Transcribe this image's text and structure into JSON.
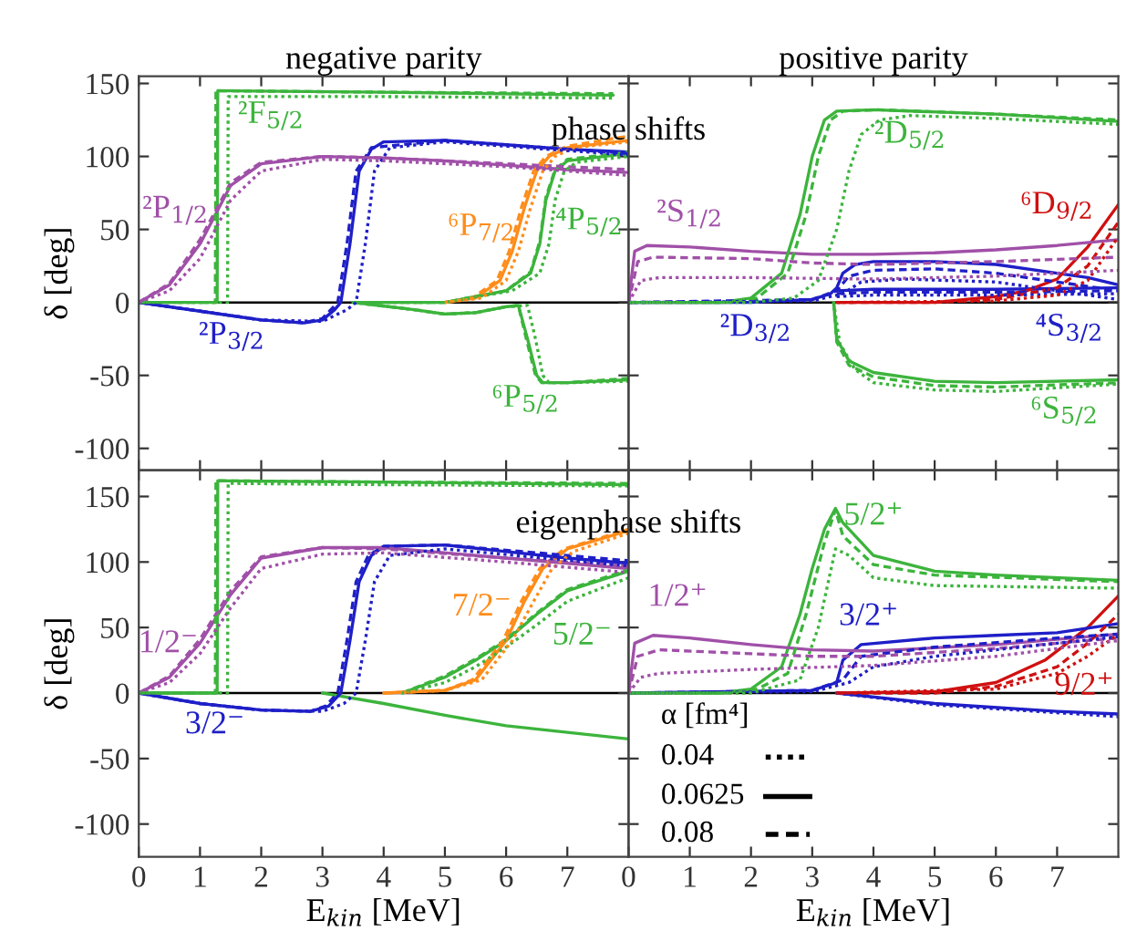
{
  "chart_data": [
    {
      "type": "line",
      "title": "negative parity",
      "subtitle": "phase shifts",
      "ylabel": "δ [deg]",
      "xlim": [
        0,
        8
      ],
      "ylim": [
        -115,
        155
      ],
      "xticks": [
        0,
        1,
        2,
        3,
        4,
        5,
        6,
        7
      ],
      "yticks": [
        -100,
        -50,
        0,
        50,
        100,
        150
      ],
      "tick_labels": "y",
      "ref_lines": [
        {
          "axis": "y",
          "value": 0,
          "color": "#000000"
        }
      ],
      "series": [
        {
          "name": "²P$_{1/2}$",
          "color": "#a050a8",
          "line_style": "solid",
          "x": [
            0,
            0.5,
            1,
            1.5,
            2,
            3,
            4,
            5,
            6,
            7,
            8
          ],
          "values": [
            0,
            12,
            40,
            80,
            95,
            100,
            99,
            97,
            94,
            91,
            89
          ]
        },
        {
          "color": "#a050a8",
          "line_style": "dashed",
          "x": [
            0,
            0.5,
            1,
            1.5,
            2,
            3,
            4,
            6,
            8
          ],
          "values": [
            0,
            13,
            43,
            82,
            96,
            100,
            99,
            95,
            91
          ]
        },
        {
          "color": "#a050a8",
          "line_style": "dotted",
          "x": [
            0,
            0.5,
            1,
            1.5,
            2,
            3,
            4,
            6,
            8
          ],
          "values": [
            0,
            8,
            30,
            70,
            90,
            98,
            97,
            93,
            87
          ]
        },
        {
          "name": "²F$_{5/2}$",
          "color": "#3cb43c",
          "line_style": "solid",
          "x": [
            0,
            1.28,
            1.29,
            4,
            7.75
          ],
          "values": [
            0,
            0,
            145,
            144,
            142
          ]
        },
        {
          "color": "#3cb43c",
          "line_style": "dashed",
          "x": [
            0,
            1.25,
            1.26,
            4,
            7.75
          ],
          "values": [
            0,
            0,
            145,
            144,
            143
          ]
        },
        {
          "color": "#3cb43c",
          "line_style": "dotted",
          "x": [
            0,
            1.45,
            1.46,
            4,
            7.75
          ],
          "values": [
            0,
            0,
            141,
            141,
            140
          ]
        },
        {
          "name": "²P$_{3/2}$",
          "color": "#1f1fc8",
          "line_style": "solid",
          "x": [
            0,
            1,
            2,
            2.7,
            3,
            3.2,
            3.3,
            3.45,
            3.6,
            3.8,
            4,
            5,
            6,
            7,
            8
          ],
          "values": [
            0,
            -6,
            -12,
            -14,
            -12,
            -5,
            0,
            40,
            90,
            105,
            110,
            111,
            108,
            105,
            103
          ]
        },
        {
          "color": "#1f1fc8",
          "line_style": "dashed",
          "x": [
            0,
            1,
            2,
            2.7,
            3,
            3.25,
            3.4,
            3.55,
            3.8,
            5,
            8
          ],
          "values": [
            0,
            -6,
            -12,
            -14,
            -11,
            0,
            40,
            90,
            106,
            111,
            102
          ]
        },
        {
          "color": "#1f1fc8",
          "line_style": "dotted",
          "x": [
            0,
            1,
            2,
            3,
            3.4,
            3.55,
            3.7,
            3.85,
            4.1,
            5,
            8
          ],
          "values": [
            0,
            -6,
            -12,
            -13,
            -5,
            0,
            40,
            90,
            106,
            110,
            101
          ]
        },
        {
          "name": "⁶P$_{7/2}$",
          "color": "#ff8c1a",
          "line_style": "solid",
          "x": [
            5,
            5.5,
            5.9,
            6.1,
            6.3,
            6.5,
            6.7,
            7,
            8
          ],
          "values": [
            0,
            3,
            15,
            35,
            65,
            90,
            100,
            106,
            111
          ]
        },
        {
          "color": "#ff8c1a",
          "line_style": "dashed",
          "x": [
            5,
            5.45,
            5.85,
            6.05,
            6.25,
            6.45,
            6.65,
            7,
            8
          ],
          "values": [
            0,
            3,
            15,
            35,
            65,
            90,
            100,
            107,
            114
          ]
        },
        {
          "color": "#ff8c1a",
          "line_style": "dotted",
          "x": [
            5,
            5.6,
            6,
            6.2,
            6.4,
            6.6,
            6.8,
            7.1,
            8
          ],
          "values": [
            0,
            3,
            15,
            35,
            65,
            90,
            100,
            106,
            110
          ]
        },
        {
          "name": "⁴P$_{5/2}$",
          "color": "#3cb43c",
          "line_style": "solid",
          "x": [
            3.5,
            5,
            6,
            6.4,
            6.55,
            6.65,
            6.8,
            7,
            8
          ],
          "values": [
            0,
            0,
            8,
            20,
            40,
            70,
            90,
            97,
            102
          ]
        },
        {
          "color": "#3cb43c",
          "line_style": "dashed",
          "x": [
            3.5,
            5,
            6,
            6.4,
            6.55,
            6.65,
            6.8,
            7,
            8
          ],
          "values": [
            0,
            0,
            8,
            21,
            42,
            72,
            91,
            98,
            103
          ]
        },
        {
          "color": "#3cb43c",
          "line_style": "dotted",
          "x": [
            3.5,
            5,
            6.1,
            6.55,
            6.7,
            6.8,
            6.95,
            7.15,
            8
          ],
          "values": [
            0,
            0,
            8,
            20,
            40,
            70,
            90,
            96,
            100
          ]
        },
        {
          "name": "⁶P$_{5/2}$",
          "color": "#3cb43c",
          "line_style": "solid",
          "x": [
            3.5,
            4.5,
            5,
            5.5,
            6,
            6.2,
            6.35,
            6.5,
            6.6,
            7,
            8
          ],
          "values": [
            0,
            -5,
            -8,
            -7,
            -3,
            -2,
            -25,
            -50,
            -55,
            -55,
            -53
          ]
        },
        {
          "color": "#3cb43c",
          "line_style": "dashed",
          "x": [
            3.5,
            4.5,
            5,
            5.5,
            6,
            6.2,
            6.33,
            6.48,
            6.58,
            7,
            8
          ],
          "values": [
            0,
            -5,
            -8,
            -7,
            -3,
            -2,
            -25,
            -50,
            -55,
            -55,
            -52
          ]
        },
        {
          "color": "#3cb43c",
          "line_style": "dotted",
          "x": [
            3.5,
            4.5,
            5,
            5.5,
            6,
            6.35,
            6.48,
            6.6,
            6.7,
            7,
            8
          ],
          "values": [
            0,
            -5,
            -8,
            -7,
            -3,
            -2,
            -25,
            -50,
            -55,
            -55,
            -54
          ]
        }
      ]
    },
    {
      "type": "line",
      "title": "positive parity",
      "xlim": [
        0,
        8
      ],
      "ylim": [
        -115,
        155
      ],
      "xticks": [
        0,
        1,
        2,
        3,
        4,
        5,
        6,
        7
      ],
      "yticks": [
        -100,
        -50,
        0,
        50,
        100,
        150
      ],
      "tick_labels": false,
      "ref_lines": [
        {
          "axis": "y",
          "value": 0,
          "color": "#000000"
        }
      ],
      "series": [
        {
          "name": "²D$_{5/2}$",
          "color": "#3cb43c",
          "line_style": "solid",
          "x": [
            0,
            1.5,
            2,
            2.5,
            2.8,
            3,
            3.2,
            3.4,
            4,
            6,
            8
          ],
          "values": [
            0,
            0,
            3,
            20,
            60,
            100,
            125,
            131,
            132,
            129,
            124
          ]
        },
        {
          "color": "#3cb43c",
          "line_style": "dashed",
          "x": [
            0,
            1.6,
            2.1,
            2.6,
            2.9,
            3.1,
            3.3,
            3.5,
            4.1,
            6,
            8
          ],
          "values": [
            0,
            0,
            3,
            20,
            60,
            100,
            125,
            131,
            132,
            129,
            125
          ]
        },
        {
          "color": "#3cb43c",
          "line_style": "dotted",
          "x": [
            0,
            2,
            2.7,
            3.1,
            3.4,
            3.6,
            3.8,
            4.1,
            4.6,
            6,
            8
          ],
          "values": [
            0,
            0,
            3,
            15,
            50,
            90,
            115,
            125,
            128,
            126,
            122
          ]
        },
        {
          "name": "²S$_{1/2}$",
          "color": "#a050a8",
          "line_style": "solid",
          "x": [
            0,
            0.1,
            0.3,
            1,
            2,
            3,
            4,
            5,
            6,
            7,
            8
          ],
          "values": [
            0,
            35,
            39,
            38,
            35,
            33,
            33,
            34,
            36,
            39,
            43
          ]
        },
        {
          "color": "#a050a8",
          "line_style": "dashed",
          "x": [
            0,
            0.15,
            0.4,
            2,
            3,
            4,
            6,
            8
          ],
          "values": [
            0,
            28,
            31,
            30,
            27,
            26,
            28,
            31
          ]
        },
        {
          "color": "#a050a8",
          "line_style": "dotted",
          "x": [
            0,
            0.2,
            0.5,
            2,
            4,
            6,
            8
          ],
          "values": [
            0,
            15,
            17,
            17,
            16,
            18,
            22
          ]
        },
        {
          "name": "⁶D$_{9/2}$",
          "color": "#d01010",
          "line_style": "solid",
          "x": [
            3.4,
            5,
            6,
            6.5,
            7,
            7.5,
            8
          ],
          "values": [
            0,
            0,
            4,
            8,
            16,
            38,
            67
          ]
        },
        {
          "color": "#d01010",
          "line_style": "dashed",
          "x": [
            3.4,
            5,
            6,
            7,
            7.5,
            8
          ],
          "values": [
            0,
            0,
            2,
            10,
            25,
            55
          ]
        },
        {
          "color": "#d01010",
          "line_style": "dotted",
          "x": [
            3.4,
            6,
            7,
            7.5,
            8
          ],
          "values": [
            0,
            1,
            5,
            15,
            45
          ]
        },
        {
          "name": "²D$_{3/2}$",
          "color": "#1f1fc8",
          "line_style": "solid",
          "x": [
            0,
            2,
            3,
            3.3,
            3.4,
            3.5,
            3.7,
            4,
            5,
            6,
            7,
            7.5,
            8
          ],
          "values": [
            0,
            0,
            2,
            6,
            10,
            20,
            26,
            28,
            28,
            26,
            20,
            17,
            12
          ]
        },
        {
          "color": "#1f1fc8",
          "line_style": "dashed",
          "x": [
            0,
            3,
            3.4,
            3.6,
            4,
            5,
            6,
            7,
            8
          ],
          "values": [
            0,
            2,
            8,
            18,
            22,
            23,
            20,
            14,
            8
          ]
        },
        {
          "color": "#1f1fc8",
          "line_style": "dotted",
          "x": [
            0,
            3,
            3.5,
            3.8,
            4.5,
            6,
            7,
            8
          ],
          "values": [
            0,
            1,
            6,
            14,
            16,
            14,
            8,
            2
          ]
        },
        {
          "name": "⁴S$_{3/2}$",
          "color": "#1f1fc8",
          "line_style": "solid",
          "x": [
            3.4,
            4,
            6,
            8
          ],
          "values": [
            8,
            9,
            9,
            10
          ]
        },
        {
          "color": "#1f1fc8",
          "line_style": "dashed",
          "x": [
            3.4,
            4,
            6,
            8
          ],
          "values": [
            6,
            7,
            7,
            8
          ]
        },
        {
          "color": "#1f1fc8",
          "line_style": "dotted",
          "x": [
            3.4,
            4,
            6,
            8
          ],
          "values": [
            4,
            5,
            5,
            6
          ]
        },
        {
          "name": "⁶S$_{5/2}$",
          "color": "#3cb43c",
          "line_style": "solid",
          "x": [
            3.35,
            3.4,
            3.6,
            4,
            5,
            6,
            8
          ],
          "values": [
            0,
            -25,
            -40,
            -48,
            -54,
            -55,
            -53
          ]
        },
        {
          "color": "#3cb43c",
          "line_style": "dashed",
          "x": [
            3.35,
            3.4,
            3.6,
            4,
            5,
            6,
            8
          ],
          "values": [
            0,
            -27,
            -43,
            -51,
            -57,
            -58,
            -55
          ]
        },
        {
          "color": "#3cb43c",
          "line_style": "dotted",
          "x": [
            3.35,
            3.45,
            3.7,
            4,
            5,
            6,
            8
          ],
          "values": [
            0,
            -28,
            -46,
            -55,
            -60,
            -61,
            -56
          ]
        }
      ]
    },
    {
      "type": "line",
      "subtitle": "eigenphase shifts",
      "xlabel": "E$_{kin}$ [MeV]",
      "ylabel": "δ [deg]",
      "xlim": [
        0,
        8
      ],
      "ylim": [
        -125,
        170
      ],
      "xticks": [
        0,
        1,
        2,
        3,
        4,
        5,
        6,
        7
      ],
      "yticks": [
        -100,
        -50,
        0,
        50,
        100,
        150
      ],
      "ref_lines": [
        {
          "axis": "y",
          "value": 0,
          "color": "#000000"
        }
      ],
      "series": [
        {
          "color": "#3cb43c",
          "line_style": "solid",
          "x": [
            0,
            1.28,
            1.29,
            4,
            8
          ],
          "values": [
            0,
            0,
            162,
            161,
            159
          ]
        },
        {
          "color": "#3cb43c",
          "line_style": "dashed",
          "x": [
            0,
            1.25,
            1.26,
            4,
            8
          ],
          "values": [
            0,
            0,
            162,
            161,
            160
          ]
        },
        {
          "color": "#3cb43c",
          "line_style": "dotted",
          "x": [
            0,
            1.45,
            1.46,
            4,
            8
          ],
          "values": [
            0,
            0,
            160,
            159,
            158
          ]
        },
        {
          "name": "1/2⁻",
          "color": "#a050a8",
          "line_style": "solid",
          "x": [
            0,
            0.5,
            1,
            1.5,
            2,
            3,
            4,
            6,
            8
          ],
          "values": [
            0,
            12,
            38,
            75,
            103,
            111,
            111,
            103,
            95
          ]
        },
        {
          "color": "#a050a8",
          "line_style": "dashed",
          "x": [
            0,
            0.5,
            1,
            1.5,
            2,
            3,
            4,
            6,
            8
          ],
          "values": [
            0,
            13,
            41,
            78,
            104,
            111,
            110,
            103,
            97
          ]
        },
        {
          "color": "#a050a8",
          "line_style": "dotted",
          "x": [
            0,
            0.5,
            1,
            1.5,
            2,
            3,
            4,
            6,
            8
          ],
          "values": [
            0,
            8,
            30,
            65,
            95,
            106,
            107,
            100,
            92
          ]
        },
        {
          "name": "3/2⁻",
          "color": "#1f1fc8",
          "line_style": "solid",
          "x": [
            0,
            1,
            2,
            2.8,
            3.1,
            3.3,
            3.45,
            3.6,
            3.8,
            4,
            5,
            6,
            7,
            8
          ],
          "values": [
            0,
            -8,
            -13,
            -14,
            -10,
            0,
            40,
            85,
            105,
            112,
            113,
            108,
            103,
            99
          ]
        },
        {
          "color": "#1f1fc8",
          "line_style": "dashed",
          "x": [
            0,
            1,
            2,
            2.8,
            3.05,
            3.25,
            3.4,
            3.55,
            3.75,
            4,
            5,
            8
          ],
          "values": [
            0,
            -8,
            -13,
            -14,
            -10,
            0,
            40,
            85,
            105,
            112,
            113,
            101
          ]
        },
        {
          "color": "#1f1fc8",
          "line_style": "dotted",
          "x": [
            0,
            1,
            2,
            3,
            3.35,
            3.55,
            3.7,
            3.85,
            4.1,
            5,
            8
          ],
          "values": [
            0,
            -8,
            -13,
            -14,
            -8,
            0,
            40,
            85,
            105,
            110,
            97
          ]
        },
        {
          "color": "#3cb43c",
          "line_style": "solid",
          "x": [
            3,
            4,
            5,
            6,
            7,
            8
          ],
          "values": [
            0,
            -8,
            -17,
            -25,
            -30,
            -35
          ]
        },
        {
          "name": "7/2⁻",
          "color": "#ff8c1a",
          "line_style": "solid",
          "x": [
            4,
            5,
            5.5,
            6,
            6.3,
            6.6,
            7,
            8
          ],
          "values": [
            0,
            2,
            10,
            40,
            70,
            95,
            110,
            124
          ]
        },
        {
          "color": "#ff8c1a",
          "line_style": "dashed",
          "x": [
            4,
            5,
            5.45,
            5.95,
            6.25,
            6.55,
            6.95,
            8
          ],
          "values": [
            0,
            2,
            10,
            40,
            70,
            95,
            110,
            125
          ]
        },
        {
          "color": "#ff8c1a",
          "line_style": "dotted",
          "x": [
            4,
            5,
            5.6,
            6.1,
            6.45,
            6.75,
            7.1,
            8
          ],
          "values": [
            0,
            2,
            10,
            40,
            70,
            95,
            108,
            122
          ]
        },
        {
          "name": "5/2⁻",
          "color": "#3cb43c",
          "line_style": "solid",
          "x": [
            4.3,
            5,
            5.5,
            6,
            6.5,
            7,
            8
          ],
          "values": [
            0,
            12,
            25,
            40,
            60,
            78,
            93
          ]
        },
        {
          "color": "#3cb43c",
          "line_style": "dashed",
          "x": [
            4.3,
            5,
            5.5,
            6,
            6.5,
            7,
            8
          ],
          "values": [
            0,
            13,
            26,
            41,
            61,
            79,
            94
          ]
        },
        {
          "color": "#3cb43c",
          "line_style": "dotted",
          "x": [
            4.3,
            5,
            5.5,
            6,
            6.5,
            7,
            8
          ],
          "values": [
            0,
            8,
            20,
            35,
            52,
            70,
            88
          ]
        }
      ]
    },
    {
      "type": "line",
      "xlabel": "E$_{kin}$ [MeV]",
      "xlim": [
        0,
        8
      ],
      "ylim": [
        -125,
        170
      ],
      "xticks": [
        0,
        1,
        2,
        3,
        4,
        5,
        6,
        7
      ],
      "yticks": [
        -100,
        -50,
        0,
        50,
        100,
        150
      ],
      "tick_labels": "x",
      "ref_lines": [
        {
          "axis": "y",
          "value": 0,
          "color": "#000000"
        }
      ],
      "annotations": [
        "α [fm⁴]",
        "0.04",
        "0.0625",
        "0.08"
      ],
      "series": [
        {
          "color": "#a050a8",
          "line_style": "dotted",
          "x": [
            0,
            0.2,
            0.5,
            2,
            4,
            6,
            8
          ],
          "values": [
            0,
            12,
            15,
            18,
            21,
            28,
            40
          ]
        },
        {
          "name": "1/2⁺",
          "color": "#a050a8",
          "line_style": "solid",
          "x": [
            0,
            0.1,
            0.4,
            1,
            2,
            3,
            4,
            6,
            8
          ],
          "values": [
            0,
            38,
            44,
            42,
            37,
            33,
            32,
            37,
            45
          ]
        },
        {
          "color": "#a050a8",
          "line_style": "dashed",
          "x": [
            0,
            0.15,
            0.5,
            2,
            3,
            4,
            6,
            8
          ],
          "values": [
            0,
            28,
            33,
            30,
            28,
            28,
            34,
            42
          ]
        },
        {
          "name": "5/2⁺",
          "color": "#3cb43c",
          "line_style": "solid",
          "x": [
            0,
            1.5,
            2,
            2.5,
            2.8,
            3,
            3.2,
            3.38,
            3.5,
            4,
            5,
            6,
            8
          ],
          "values": [
            0,
            0,
            3,
            20,
            60,
            95,
            125,
            141,
            130,
            105,
            93,
            90,
            86
          ]
        },
        {
          "color": "#3cb43c",
          "line_style": "dashed",
          "x": [
            0,
            1.6,
            2.1,
            2.6,
            2.9,
            3.2,
            3.38,
            3.5,
            4,
            5,
            8
          ],
          "values": [
            0,
            0,
            3,
            15,
            60,
            115,
            140,
            120,
            98,
            90,
            85
          ]
        },
        {
          "color": "#3cb43c",
          "line_style": "dotted",
          "x": [
            0,
            2,
            2.8,
            3.1,
            3.38,
            3.6,
            4,
            5,
            8
          ],
          "values": [
            0,
            0,
            10,
            50,
            110,
            105,
            88,
            82,
            80
          ]
        },
        {
          "name": "3/2⁺",
          "color": "#1f1fc8",
          "line_style": "solid",
          "x": [
            0,
            3,
            3.4,
            3.5,
            3.8,
            5,
            6,
            7,
            8
          ],
          "values": [
            0,
            2,
            8,
            25,
            37,
            42,
            44,
            46,
            53
          ]
        },
        {
          "color": "#1f1fc8",
          "line_style": "dashed",
          "x": [
            0,
            3,
            3.5,
            3.8,
            5,
            7,
            8
          ],
          "values": [
            0,
            2,
            10,
            28,
            35,
            42,
            45
          ]
        },
        {
          "color": "#1f1fc8",
          "line_style": "dotted",
          "x": [
            0,
            3,
            3.6,
            4,
            5,
            7,
            8
          ],
          "values": [
            0,
            1,
            8,
            20,
            28,
            38,
            43
          ]
        },
        {
          "name": "9/2⁺",
          "color": "#d01010",
          "line_style": "solid",
          "x": [
            3.4,
            5,
            6,
            6.8,
            7.5,
            8
          ],
          "values": [
            0,
            1,
            8,
            25,
            50,
            74
          ]
        },
        {
          "color": "#d01010",
          "line_style": "dashed",
          "x": [
            3.4,
            5,
            6,
            7,
            7.5,
            8
          ],
          "values": [
            0,
            0,
            5,
            20,
            38,
            60
          ]
        },
        {
          "color": "#d01010",
          "line_style": "dotted",
          "x": [
            3.4,
            6,
            7,
            7.5,
            8
          ],
          "values": [
            0,
            3,
            15,
            28,
            45
          ]
        },
        {
          "color": "#1f1fc8",
          "line_style": "solid",
          "x": [
            3.4,
            5,
            7,
            8
          ],
          "values": [
            0,
            -8,
            -14,
            -16
          ]
        },
        {
          "color": "#1f1fc8",
          "line_style": "dotted",
          "x": [
            3.4,
            5,
            7,
            8
          ],
          "values": [
            0,
            -9,
            -15,
            -18
          ]
        }
      ]
    }
  ]
}
